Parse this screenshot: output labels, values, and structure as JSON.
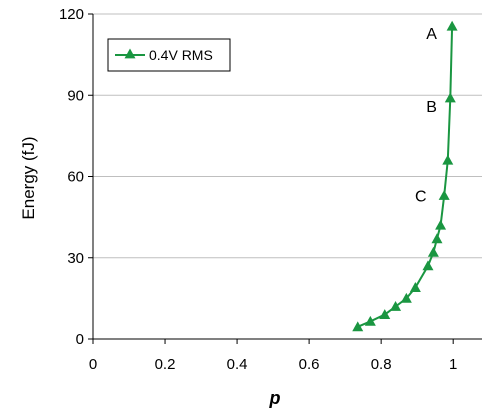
{
  "chart_data": {
    "type": "line",
    "title": "",
    "xlabel": "p",
    "ylabel": "Energy (fJ)",
    "xlim": [
      0,
      1.08
    ],
    "ylim": [
      0,
      120
    ],
    "x_ticks": [
      "0",
      "0.2",
      "0.4",
      "0.6",
      "0.8",
      "1"
    ],
    "y_ticks": [
      "0",
      "30",
      "60",
      "90",
      "120"
    ],
    "grid": "horizontal",
    "legend_position": "top-left",
    "series": [
      {
        "name": "0.4V RMS",
        "color": "#1a9641",
        "marker": "triangle",
        "points": [
          {
            "x": 0.735,
            "y": 4.5
          },
          {
            "x": 0.77,
            "y": 6.5
          },
          {
            "x": 0.81,
            "y": 9
          },
          {
            "x": 0.84,
            "y": 12
          },
          {
            "x": 0.87,
            "y": 15
          },
          {
            "x": 0.895,
            "y": 19
          },
          {
            "x": 0.93,
            "y": 27
          },
          {
            "x": 0.945,
            "y": 32
          },
          {
            "x": 0.955,
            "y": 37
          },
          {
            "x": 0.965,
            "y": 42
          },
          {
            "x": 0.975,
            "y": 53
          },
          {
            "x": 0.985,
            "y": 66
          },
          {
            "x": 0.992,
            "y": 89
          },
          {
            "x": 0.997,
            "y": 115.5
          }
        ]
      }
    ],
    "annotations": [
      {
        "text": "A",
        "x": 0.94,
        "y": 113
      },
      {
        "text": "B",
        "x": 0.94,
        "y": 86
      },
      {
        "text": "C",
        "x": 0.91,
        "y": 53
      }
    ]
  }
}
